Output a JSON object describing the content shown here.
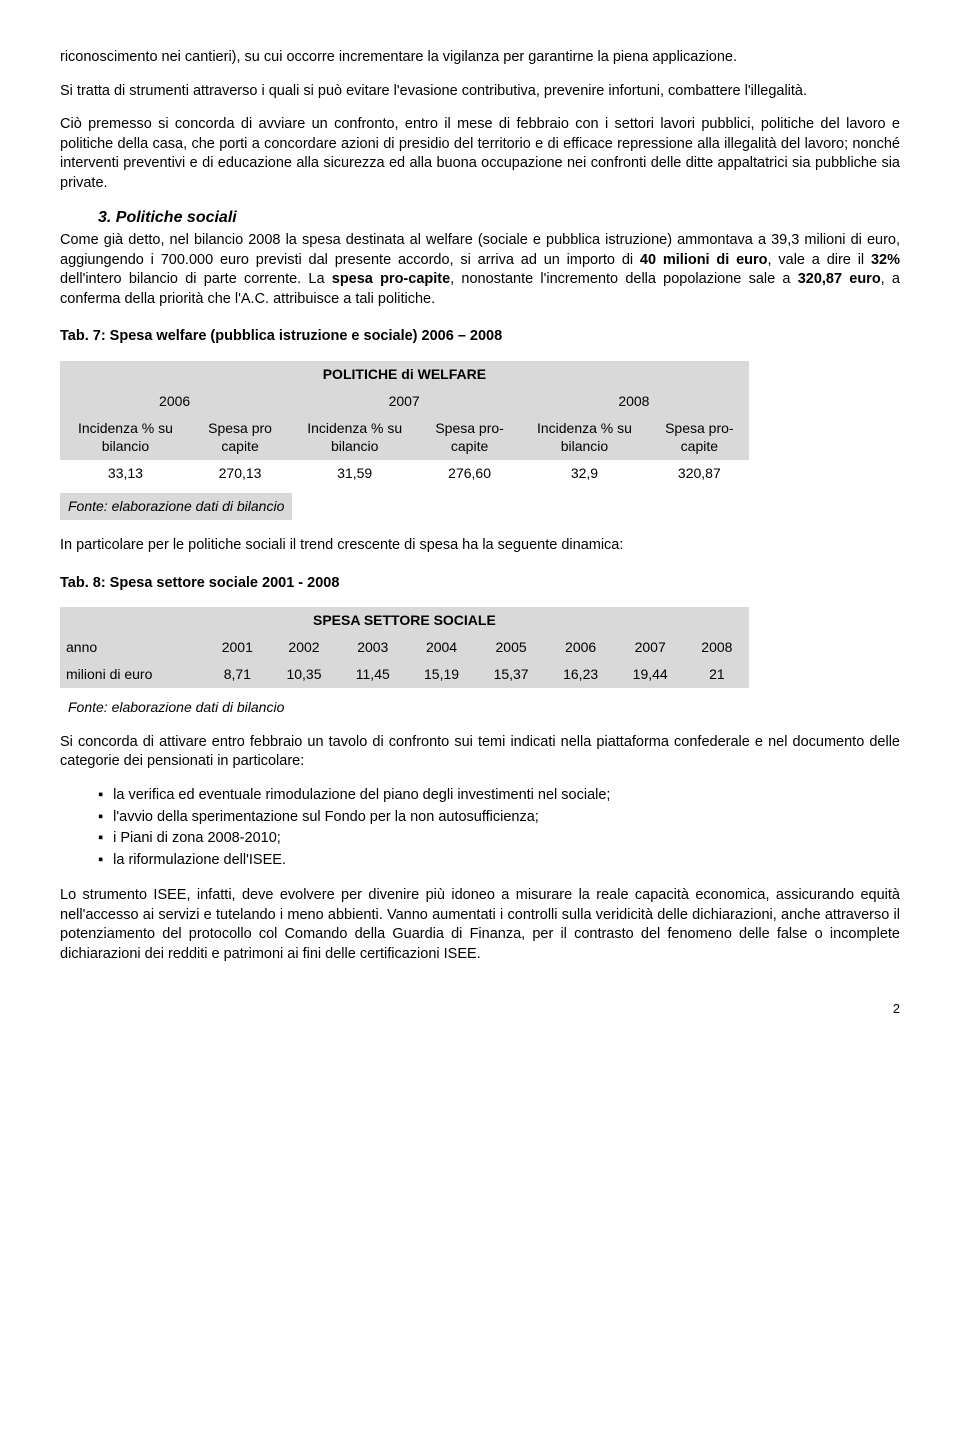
{
  "para1": "riconoscimento nei cantieri), su cui occorre incrementare la vigilanza per garantirne la piena applicazione.",
  "para2": "Si tratta di strumenti attraverso i quali si può evitare l'evasione contributiva, prevenire infortuni, combattere l'illegalità.",
  "para3": "Ciò premesso si concorda di avviare un confronto, entro il mese di febbraio con i settori lavori pubblici, politiche del lavoro e politiche della casa, che porti a concordare azioni di presidio del territorio e di efficace repressione alla illegalità del lavoro; nonché interventi preventivi e di educazione alla sicurezza ed alla buona occupazione nei confronti delle ditte appaltatrici sia pubbliche sia private.",
  "section3_title": "3. Politiche sociali",
  "para4a": "Come già detto, nel bilancio 2008 la spesa destinata al welfare (sociale e pubblica istruzione) ammontava a 39,3 milioni di euro, aggiungendo i 700.000 euro previsti dal presente accordo, si arriva ad un importo di ",
  "para4b": "40 milioni di euro",
  "para4c": ", vale a dire il ",
  "para4d": "32%",
  "para4e": " dell'intero bilancio di parte corrente. La ",
  "para4f": "spesa pro-capite",
  "para4g": ", nonostante l'incremento della popolazione sale a ",
  "para4h": "320,87 euro",
  "para4i": ", a conferma della priorità che l'A.C. attribuisce a tali politiche.",
  "tab7_title": "Tab. 7: Spesa welfare (pubblica istruzione e sociale) 2006 – 2008",
  "tab7": {
    "header": "POLITICHE di WELFARE",
    "years": [
      "2006",
      "2007",
      "2008"
    ],
    "cols": [
      "Incidenza % su bilancio",
      "Spesa pro capite",
      "Incidenza % su bilancio",
      "Spesa pro-capite",
      "Incidenza % su bilancio",
      "Spesa pro-capite"
    ],
    "row": [
      "33,13",
      "270,13",
      "31,59",
      "276,60",
      "32,9",
      "320,87"
    ],
    "source": "Fonte: elaborazione dati di bilancio"
  },
  "para5": "In particolare per le politiche sociali il trend crescente di spesa ha la seguente dinamica:",
  "tab8_title": "Tab. 8: Spesa settore sociale 2001 - 2008",
  "tab8": {
    "header": "SPESA SETTORE SOCIALE",
    "row_labels": [
      "anno",
      "milioni di euro"
    ],
    "years": [
      "2001",
      "2002",
      "2003",
      "2004",
      "2005",
      "2006",
      "2007",
      "2008"
    ],
    "values": [
      "8,71",
      "10,35",
      "11,45",
      "15,19",
      "15,37",
      "16,23",
      "19,44",
      "21"
    ],
    "source": "Fonte: elaborazione dati di bilancio"
  },
  "para6": "Si concorda di attivare entro febbraio un tavolo di confronto sui temi indicati nella piattaforma confederale e nel documento delle categorie dei pensionati in particolare:",
  "bullets": [
    "la verifica ed eventuale rimodulazione del piano degli investimenti nel sociale;",
    "l'avvio della sperimentazione sul Fondo per la non autosufficienza;",
    "i Piani di zona 2008-2010;",
    "la riformulazione dell'ISEE."
  ],
  "para7": "Lo strumento ISEE, infatti, deve evolvere per divenire più idoneo a misurare la reale capacità economica, assicurando equità nell'accesso ai servizi e tutelando i meno abbienti. Vanno aumentati i controlli sulla veridicità delle dichiarazioni, anche attraverso il potenziamento del protocollo col Comando della Guardia di Finanza, per il contrasto del fenomeno delle false o incomplete dichiarazioni dei redditi e patrimoni ai fini delle certificazioni ISEE.",
  "page_number": "2",
  "colors": {
    "header_bg": "#d9d9d9",
    "text": "#000000",
    "bg": "#ffffff"
  }
}
